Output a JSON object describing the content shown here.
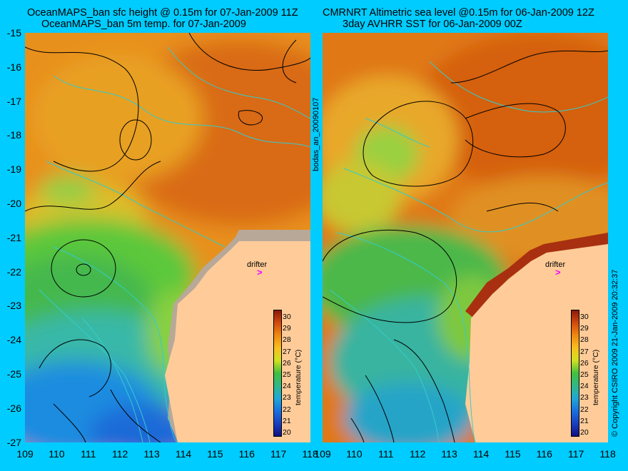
{
  "left_panel": {
    "title_line1": "OceanMAPS_ban sfc height @ 0.15m for 07-Jan-2009 11Z",
    "title_line2": "OceanMAPS_ban 5m temp. for 07-Jan-2009"
  },
  "right_panel": {
    "title_line1": "CMRNRT Altimetric sea level  @0.15m  for 06-Jan-2009 12Z",
    "title_line2": "3day AVHRR SST for 06-Jan-2009 00Z"
  },
  "center_label": "bodas_an_20090107",
  "right_label": "© Copyright CSIRO 2009   21-Jan-2009 20:32:37",
  "drifter_label": "drifter",
  "drifter_marker": ">",
  "colorbar": {
    "title": "temperature (°C)",
    "ticks": [
      "30",
      "29",
      "28",
      "27",
      "26",
      "25",
      "24",
      "23",
      "22",
      "21",
      "20"
    ]
  },
  "axes": {
    "lat_ticks": [
      "-15",
      "-16",
      "-17",
      "-18",
      "-19",
      "-20",
      "-21",
      "-22",
      "-23",
      "-24",
      "-25",
      "-26",
      "-27"
    ],
    "lon_ticks": [
      "109",
      "110",
      "111",
      "112",
      "113",
      "114",
      "115",
      "116",
      "117",
      "118"
    ],
    "lat_range": [
      -27,
      -15
    ],
    "lon_range": [
      109,
      118
    ]
  },
  "colors": {
    "background": "#00ccff",
    "land": "#ffcc99",
    "model_land": "#b8a898",
    "contour_ssh": "#000000",
    "contour_bathy": "#33cccc",
    "drifter": "#ff00ff"
  }
}
